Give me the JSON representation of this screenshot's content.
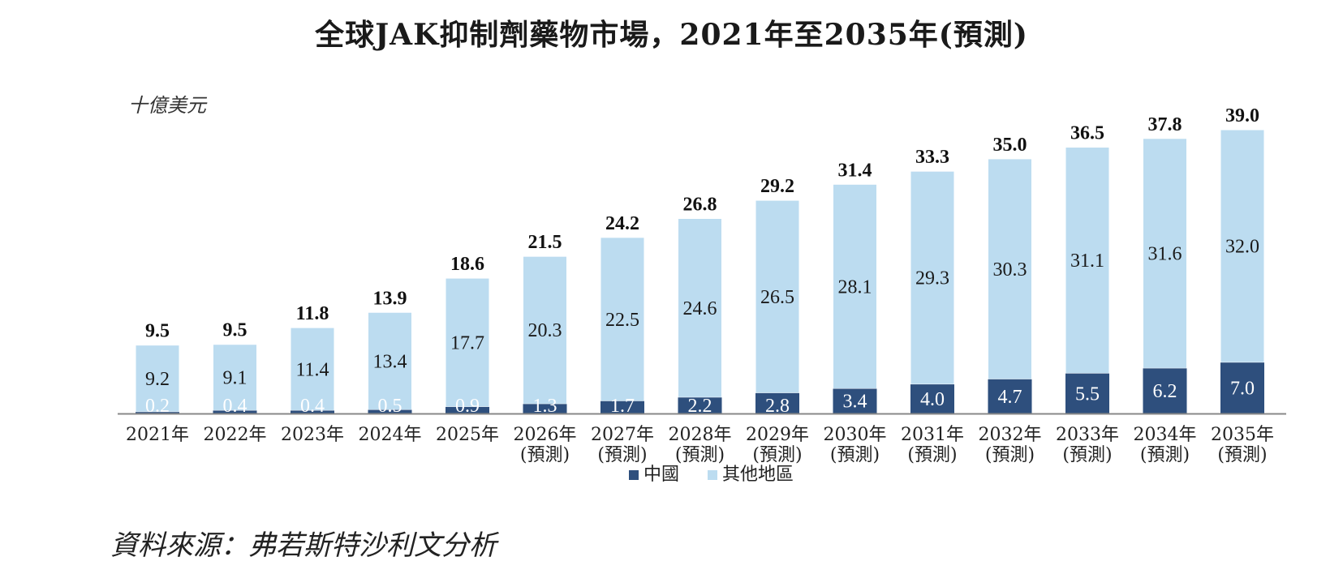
{
  "title": "全球JAK抑制劑藥物市場，2021年至2035年(預測)",
  "unit": "十億美元",
  "source": "資料來源：弗若斯特沙利文分析",
  "colors": {
    "china": "#2e4f7d",
    "rest": "#bcdcf0",
    "axis": "#888888"
  },
  "chart_data": {
    "type": "bar",
    "stacked": true,
    "categories": [
      [
        "2021年"
      ],
      [
        "2022年"
      ],
      [
        "2023年"
      ],
      [
        "2024年"
      ],
      [
        "2025年"
      ],
      [
        "2026年",
        "(預測)"
      ],
      [
        "2027年",
        "(預測)"
      ],
      [
        "2028年",
        "(預測)"
      ],
      [
        "2029年",
        "(預測)"
      ],
      [
        "2030年",
        "(預測)"
      ],
      [
        "2031年",
        "(預測)"
      ],
      [
        "2032年",
        "(預測)"
      ],
      [
        "2033年",
        "(預測)"
      ],
      [
        "2034年",
        "(預測)"
      ],
      [
        "2035年",
        "(預測)"
      ]
    ],
    "series": [
      {
        "name": "中國",
        "values": [
          0.2,
          0.4,
          0.4,
          0.5,
          0.9,
          1.3,
          1.7,
          2.2,
          2.8,
          3.4,
          4.0,
          4.7,
          5.5,
          6.2,
          7.0
        ]
      },
      {
        "name": "其他地區",
        "values": [
          9.2,
          9.1,
          11.4,
          13.4,
          17.7,
          20.3,
          22.5,
          24.6,
          26.5,
          28.1,
          29.3,
          30.3,
          31.1,
          31.6,
          32.0
        ]
      }
    ],
    "series_labels": {
      "中國": [
        "0.2",
        "0.4",
        "0.4",
        "0.5",
        "0.9",
        "1.3",
        "1.7",
        "2.2",
        "2.8",
        "3.4",
        "4.0",
        "4.7",
        "5.5",
        "6.2",
        "7.0"
      ],
      "其他地區": [
        "9.2",
        "9.1",
        "11.4",
        "13.4",
        "17.7",
        "20.3",
        "22.5",
        "24.6",
        "26.5",
        "28.1",
        "29.3",
        "30.3",
        "31.1",
        "31.6",
        "32.0"
      ]
    },
    "totals": [
      "9.5",
      "9.5",
      "11.8",
      "13.9",
      "18.6",
      "21.5",
      "24.2",
      "26.8",
      "29.2",
      "31.4",
      "33.3",
      "35.0",
      "36.5",
      "37.8",
      "39.0"
    ],
    "ylim": [
      0,
      39.0
    ],
    "legend": [
      "中國",
      "其他地區"
    ],
    "legend_position": "bottom-center",
    "grid": false
  }
}
